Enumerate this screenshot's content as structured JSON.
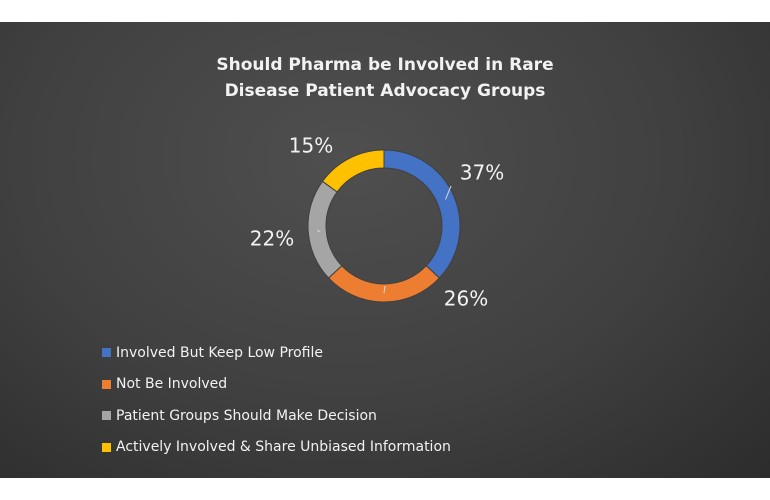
{
  "chart_data": {
    "type": "pie",
    "subtype": "donut",
    "title": "Should Pharma be Involved in Rare Disease Patient Advocacy Groups",
    "title_lines": [
      "Should Pharma be Involved in Rare",
      "Disease Patient Advocacy Groups"
    ],
    "categories": [
      "Involved But Keep Low Profile",
      "Not Be Involved",
      "Patient Groups Should Make Decision",
      "Actively Involved & Share Unbiased Information"
    ],
    "values": [
      37,
      26,
      22,
      15
    ],
    "labels": [
      "37%",
      "26%",
      "22%",
      "15%"
    ],
    "colors": [
      "#4472c4",
      "#ed7d31",
      "#a5a5a5",
      "#ffc000"
    ],
    "legend_position": "bottom-left",
    "background": "#404040"
  }
}
